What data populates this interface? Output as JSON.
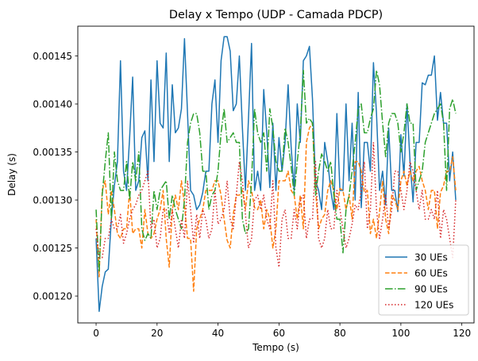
{
  "chart_data": {
    "type": "line",
    "title": "Delay x Tempo (UDP - Camada PDCP)",
    "xlabel": "Tempo (s)",
    "ylabel": "Delay (s)",
    "xlim": [
      -6,
      124
    ],
    "ylim": [
      0.001172,
      0.001481
    ],
    "xticks": [
      0,
      20,
      40,
      60,
      80,
      100,
      120
    ],
    "yticks": [
      0.0012,
      0.00125,
      0.0013,
      0.00135,
      0.0014,
      0.00145
    ],
    "ytick_labels": [
      "0.00120",
      "0.00125",
      "0.00130",
      "0.00135",
      "0.00140",
      "0.00145"
    ],
    "grid": false,
    "legend_position": "lower-right",
    "x": [
      0,
      1,
      2,
      3,
      4,
      5,
      6,
      7,
      8,
      9,
      10,
      11,
      12,
      13,
      14,
      15,
      16,
      17,
      18,
      19,
      20,
      21,
      22,
      23,
      24,
      25,
      26,
      27,
      28,
      29,
      30,
      31,
      32,
      33,
      34,
      35,
      36,
      37,
      38,
      39,
      40,
      41,
      42,
      43,
      44,
      45,
      46,
      47,
      48,
      49,
      50,
      51,
      52,
      53,
      54,
      55,
      56,
      57,
      58,
      59,
      60,
      61,
      62,
      63,
      64,
      65,
      66,
      67,
      68,
      69,
      70,
      71,
      72,
      73,
      74,
      75,
      76,
      77,
      78,
      79,
      80,
      81,
      82,
      83,
      84,
      85,
      86,
      87,
      88,
      89,
      90,
      91,
      92,
      93,
      94,
      95,
      96,
      97,
      98,
      99,
      100,
      101,
      102,
      103,
      104,
      105,
      106,
      107,
      108,
      109,
      110,
      111,
      112,
      113,
      114,
      115,
      116,
      117,
      118
    ],
    "series": [
      {
        "name": "30 UEs",
        "color": "#1f77b4",
        "dash": "solid",
        "values": [
          0.00126,
          0.001184,
          0.00121,
          0.001225,
          0.001228,
          0.00128,
          0.001315,
          0.00134,
          0.001445,
          0.00133,
          0.00131,
          0.001365,
          0.001428,
          0.00131,
          0.00132,
          0.001365,
          0.001372,
          0.00132,
          0.001425,
          0.00134,
          0.001445,
          0.00138,
          0.001375,
          0.001453,
          0.00134,
          0.00142,
          0.00137,
          0.001375,
          0.001395,
          0.001468,
          0.00139,
          0.00131,
          0.001305,
          0.00129,
          0.001295,
          0.001308,
          0.00133,
          0.00133,
          0.0014,
          0.001425,
          0.00136,
          0.001445,
          0.00147,
          0.00147,
          0.001455,
          0.001393,
          0.0014,
          0.00145,
          0.001375,
          0.00131,
          0.001385,
          0.001463,
          0.00131,
          0.00133,
          0.00131,
          0.001415,
          0.00137,
          0.001313,
          0.00138,
          0.00131,
          0.001365,
          0.00133,
          0.00136,
          0.00142,
          0.001355,
          0.00131,
          0.0014,
          0.00136,
          0.001445,
          0.00145,
          0.00146,
          0.001405,
          0.00132,
          0.00131,
          0.00129,
          0.00136,
          0.00134,
          0.00131,
          0.00129,
          0.00139,
          0.00131,
          0.00131,
          0.0014,
          0.00132,
          0.00138,
          0.0013,
          0.001412,
          0.001292,
          0.00136,
          0.00136,
          0.00133,
          0.001443,
          0.00139,
          0.00131,
          0.00133,
          0.001295,
          0.001375,
          0.00131,
          0.00131,
          0.001288,
          0.001368,
          0.001325,
          0.0014,
          0.00134,
          0.001298,
          0.00136,
          0.00136,
          0.001422,
          0.00142,
          0.00143,
          0.00143,
          0.00145,
          0.001383,
          0.001412,
          0.00138,
          0.00138,
          0.00132,
          0.00135,
          0.0013
        ]
      },
      {
        "name": "60 UEs",
        "color": "#ff7f0e",
        "dash": "dashed",
        "values": [
          0.00128,
          0.00122,
          0.00131,
          0.00132,
          0.001285,
          0.00131,
          0.00129,
          0.001265,
          0.00126,
          0.00127,
          0.00127,
          0.00131,
          0.001265,
          0.00127,
          0.00127,
          0.00125,
          0.00129,
          0.001265,
          0.00126,
          0.001265,
          0.00128,
          0.00129,
          0.00131,
          0.00126,
          0.00123,
          0.00129,
          0.001305,
          0.00129,
          0.00132,
          0.001295,
          0.00126,
          0.00126,
          0.001205,
          0.00127,
          0.00128,
          0.00129,
          0.00131,
          0.00131,
          0.00131,
          0.00132,
          0.00132,
          0.001305,
          0.00128,
          0.001258,
          0.00125,
          0.001285,
          0.001305,
          0.001305,
          0.00131,
          0.00129,
          0.00132,
          0.00131,
          0.001292,
          0.00129,
          0.0013,
          0.00127,
          0.00129,
          0.00128,
          0.00125,
          0.00127,
          0.00132,
          0.00132,
          0.00132,
          0.00133,
          0.00131,
          0.001305,
          0.00128,
          0.001305,
          0.00127,
          0.00136,
          0.001375,
          0.00138,
          0.00131,
          0.00127,
          0.00128,
          0.001285,
          0.00131,
          0.00132,
          0.00131,
          0.00129,
          0.001312,
          0.00131,
          0.00129,
          0.001305,
          0.00128,
          0.00134,
          0.00134,
          0.00133,
          0.001308,
          0.00131,
          0.001265,
          0.00128,
          0.00126,
          0.001288,
          0.00132,
          0.00128,
          0.001265,
          0.001305,
          0.0013,
          0.00129,
          0.00132,
          0.00133,
          0.001315,
          0.00133,
          0.00132,
          0.00133,
          0.001335,
          0.00132,
          0.00131,
          0.00129,
          0.00131,
          0.00131,
          0.00127,
          0.001308,
          0.001315,
          0.00133,
          0.00133,
          0.001345,
          0.00131
        ]
      },
      {
        "name": "90 UEs",
        "color": "#2ca02c",
        "dash": "dashdot",
        "values": [
          0.00129,
          0.001225,
          0.001305,
          0.00134,
          0.00137,
          0.00128,
          0.00135,
          0.00132,
          0.00131,
          0.00131,
          0.00134,
          0.0013,
          0.00134,
          0.00132,
          0.00135,
          0.00127,
          0.001258,
          0.001265,
          0.00126,
          0.00131,
          0.00129,
          0.00131,
          0.001315,
          0.00132,
          0.00128,
          0.001305,
          0.00129,
          0.00128,
          0.00127,
          0.0013,
          0.00136,
          0.00138,
          0.00139,
          0.00139,
          0.00137,
          0.00133,
          0.00133,
          0.00129,
          0.001305,
          0.00131,
          0.00133,
          0.00137,
          0.001395,
          0.00136,
          0.001365,
          0.00137,
          0.00136,
          0.00136,
          0.00128,
          0.001265,
          0.00127,
          0.00132,
          0.001395,
          0.00137,
          0.00136,
          0.00137,
          0.00133,
          0.001395,
          0.001375,
          0.00134,
          0.00133,
          0.00133,
          0.001375,
          0.00136,
          0.001335,
          0.001305,
          0.00134,
          0.00137,
          0.001435,
          0.00138,
          0.001385,
          0.00138,
          0.001305,
          0.00133,
          0.001348,
          0.00134,
          0.00133,
          0.00134,
          0.001305,
          0.00128,
          0.00128,
          0.001245,
          0.00129,
          0.001305,
          0.00133,
          0.00136,
          0.001395,
          0.0014,
          0.00137,
          0.00137,
          0.001385,
          0.001395,
          0.001435,
          0.00142,
          0.00138,
          0.001345,
          0.00138,
          0.00139,
          0.00139,
          0.00138,
          0.00135,
          0.00137,
          0.0014,
          0.00138,
          0.00138,
          0.00131,
          0.00132,
          0.00133,
          0.00136,
          0.00137,
          0.00138,
          0.00139,
          0.001395,
          0.0014,
          0.00138,
          0.00131,
          0.001395,
          0.001405,
          0.00139
        ]
      },
      {
        "name": "120 UEs",
        "color": "#d62728",
        "dash": "dotted",
        "values": [
          0.00127,
          0.00124,
          0.00124,
          0.00126,
          0.00126,
          0.00128,
          0.00127,
          0.00127,
          0.001285,
          0.001255,
          0.001265,
          0.00128,
          0.00129,
          0.001295,
          0.001305,
          0.00131,
          0.00132,
          0.00133,
          0.00127,
          0.00128,
          0.00125,
          0.00126,
          0.00129,
          0.00129,
          0.001265,
          0.00129,
          0.00127,
          0.00125,
          0.00128,
          0.00126,
          0.00132,
          0.00129,
          0.001255,
          0.001285,
          0.00126,
          0.00129,
          0.00128,
          0.00126,
          0.00127,
          0.00131,
          0.001275,
          0.00128,
          0.00129,
          0.00132,
          0.00128,
          0.00127,
          0.001305,
          0.00134,
          0.00132,
          0.001285,
          0.00125,
          0.00126,
          0.0013,
          0.001305,
          0.00129,
          0.001305,
          0.00128,
          0.00127,
          0.00132,
          0.00125,
          0.00123,
          0.00128,
          0.00129,
          0.00126,
          0.00126,
          0.00129,
          0.00127,
          0.0013,
          0.001305,
          0.00126,
          0.00128,
          0.00128,
          0.00134,
          0.00126,
          0.00125,
          0.00126,
          0.00129,
          0.00127,
          0.00127,
          0.00131,
          0.00129,
          0.00127,
          0.00125,
          0.00126,
          0.001275,
          0.001295,
          0.00129,
          0.00131,
          0.00134,
          0.00127,
          0.00129,
          0.00136,
          0.00129,
          0.00126,
          0.00128,
          0.001305,
          0.00127,
          0.00129,
          0.00133,
          0.00133,
          0.00131,
          0.00129,
          0.00131,
          0.00134,
          0.00133,
          0.00131,
          0.00129,
          0.00131,
          0.00128,
          0.00128,
          0.00129,
          0.00128,
          0.00131,
          0.00126,
          0.00129,
          0.00128,
          0.00126,
          0.00124,
          0.0013
        ]
      }
    ]
  }
}
